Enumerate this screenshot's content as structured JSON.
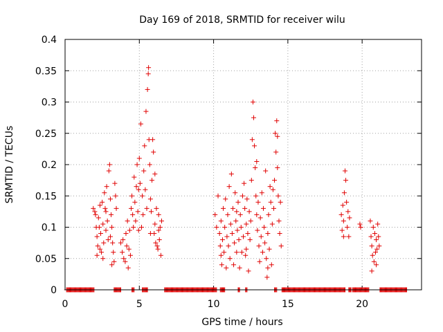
{
  "chart_data": {
    "type": "scatter",
    "title": "Day 169 of 2018, SRMTID for receiver wilu",
    "xlabel": "GPS time / hours",
    "ylabel": "SRMTID / TECUs",
    "xlim": [
      0,
      24
    ],
    "ylim": [
      0,
      0.4
    ],
    "xticks": [
      0,
      5,
      10,
      15,
      20
    ],
    "xtick_labels": [
      "0",
      "5",
      "10",
      "15",
      "20"
    ],
    "yticks": [
      0,
      0.05,
      0.1,
      0.15,
      0.2,
      0.25,
      0.3,
      0.35,
      0.4
    ],
    "ytick_labels": [
      "0",
      "0.05",
      "0.1",
      "0.15",
      "0.2",
      "0.25",
      "0.3",
      "0.35",
      "0.4"
    ],
    "grid": true,
    "marker": "+",
    "color": "#e00000",
    "series": [
      {
        "name": "SRMTID",
        "points": [
          [
            1.9,
            0.13
          ],
          [
            2.0,
            0.125
          ],
          [
            2.05,
            0.12
          ],
          [
            2.1,
            0.1
          ],
          [
            2.15,
            0.085
          ],
          [
            2.2,
            0.07
          ],
          [
            2.25,
            0.115
          ],
          [
            2.3,
            0.1
          ],
          [
            2.35,
            0.135
          ],
          [
            2.4,
            0.09
          ],
          [
            2.45,
            0.06
          ],
          [
            2.5,
            0.14
          ],
          [
            2.55,
            0.105
          ],
          [
            2.6,
            0.075
          ],
          [
            2.65,
            0.155
          ],
          [
            2.7,
            0.13
          ],
          [
            2.75,
            0.095
          ],
          [
            2.8,
            0.165
          ],
          [
            2.85,
            0.11
          ],
          [
            2.9,
            0.08
          ],
          [
            2.95,
            0.19
          ],
          [
            3.0,
            0.2
          ],
          [
            3.05,
            0.145
          ],
          [
            3.1,
            0.12
          ],
          [
            3.15,
            0.1
          ],
          [
            3.2,
            0.075
          ],
          [
            3.25,
            0.06
          ],
          [
            3.3,
            0.045
          ],
          [
            3.35,
            0.17
          ],
          [
            3.4,
            0.15
          ],
          [
            3.45,
            0.13
          ],
          [
            2.15,
            0.055
          ],
          [
            2.35,
            0.065
          ],
          [
            2.55,
            0.05
          ],
          [
            2.75,
            0.125
          ],
          [
            3.05,
            0.085
          ],
          [
            3.15,
            0.04
          ],
          [
            3.75,
            0.075
          ],
          [
            3.85,
            0.06
          ],
          [
            3.9,
            0.08
          ],
          [
            3.95,
            0.05
          ],
          [
            4.05,
            0.045
          ],
          [
            4.1,
            0.09
          ],
          [
            4.15,
            0.07
          ],
          [
            4.2,
            0.11
          ],
          [
            4.25,
            0.035
          ],
          [
            4.3,
            0.065
          ],
          [
            4.35,
            0.095
          ],
          [
            4.45,
            0.13
          ],
          [
            4.5,
            0.15
          ],
          [
            4.55,
            0.12
          ],
          [
            4.6,
            0.1
          ],
          [
            4.65,
            0.18
          ],
          [
            4.7,
            0.14
          ],
          [
            4.75,
            0.11
          ],
          [
            4.8,
            0.165
          ],
          [
            4.85,
            0.2
          ],
          [
            4.9,
            0.125
          ],
          [
            4.95,
            0.095
          ],
          [
            5.0,
            0.21
          ],
          [
            5.05,
            0.17
          ],
          [
            5.1,
            0.265
          ],
          [
            5.15,
            0.1
          ],
          [
            5.2,
            0.15
          ],
          [
            5.25,
            0.12
          ],
          [
            5.3,
            0.19
          ],
          [
            5.35,
            0.23
          ],
          [
            5.4,
            0.16
          ],
          [
            5.45,
            0.285
          ],
          [
            5.5,
            0.13
          ],
          [
            5.55,
            0.32
          ],
          [
            5.6,
            0.345
          ],
          [
            5.62,
            0.355
          ],
          [
            5.65,
            0.24
          ],
          [
            5.7,
            0.2
          ],
          [
            5.75,
            0.145
          ],
          [
            5.8,
            0.125
          ],
          [
            5.85,
            0.175
          ],
          [
            5.9,
            0.24
          ],
          [
            5.95,
            0.22
          ],
          [
            6.0,
            0.09
          ],
          [
            6.05,
            0.105
          ],
          [
            6.1,
            0.075
          ],
          [
            6.15,
            0.13
          ],
          [
            6.2,
            0.07
          ],
          [
            6.25,
            0.065
          ],
          [
            6.3,
            0.12
          ],
          [
            6.35,
            0.08
          ],
          [
            6.4,
            0.1
          ],
          [
            6.45,
            0.055
          ],
          [
            6.5,
            0.11
          ],
          [
            4.4,
            0.055
          ],
          [
            4.95,
            0.16
          ],
          [
            5.75,
            0.09
          ],
          [
            6.05,
            0.185
          ],
          [
            6.3,
            0.095
          ],
          [
            10.1,
            0.12
          ],
          [
            10.2,
            0.1
          ],
          [
            10.3,
            0.15
          ],
          [
            10.4,
            0.09
          ],
          [
            10.45,
            0.07
          ],
          [
            10.5,
            0.11
          ],
          [
            10.55,
            0.04
          ],
          [
            10.6,
            0.08
          ],
          [
            10.65,
            0.13
          ],
          [
            10.7,
            0.06
          ],
          [
            10.75,
            0.1
          ],
          [
            10.8,
            0.145
          ],
          [
            10.85,
            0.035
          ],
          [
            10.9,
            0.085
          ],
          [
            10.95,
            0.12
          ],
          [
            11.0,
            0.07
          ],
          [
            11.05,
            0.165
          ],
          [
            11.1,
            0.05
          ],
          [
            11.15,
            0.105
          ],
          [
            11.2,
            0.185
          ],
          [
            11.25,
            0.09
          ],
          [
            11.3,
            0.13
          ],
          [
            11.35,
            0.04
          ],
          [
            11.4,
            0.075
          ],
          [
            11.45,
            0.155
          ],
          [
            11.5,
            0.11
          ],
          [
            11.55,
            0.06
          ],
          [
            11.6,
            0.095
          ],
          [
            11.65,
            0.14
          ],
          [
            11.7,
            0.08
          ],
          [
            11.75,
            0.035
          ],
          [
            11.8,
            0.12
          ],
          [
            11.85,
            0.1
          ],
          [
            11.9,
            0.06
          ],
          [
            11.95,
            0.15
          ],
          [
            12.0,
            0.085
          ],
          [
            12.05,
            0.17
          ],
          [
            12.1,
            0.13
          ],
          [
            12.15,
            0.055
          ],
          [
            12.2,
            0.105
          ],
          [
            12.25,
            0.145
          ],
          [
            12.3,
            0.09
          ],
          [
            12.35,
            0.03
          ],
          [
            12.4,
            0.125
          ],
          [
            12.45,
            0.08
          ],
          [
            12.5,
            0.11
          ],
          [
            12.55,
            0.175
          ],
          [
            12.6,
            0.24
          ],
          [
            12.65,
            0.3
          ],
          [
            12.7,
            0.275
          ],
          [
            12.75,
            0.23
          ],
          [
            12.8,
            0.195
          ],
          [
            12.85,
            0.15
          ],
          [
            12.9,
            0.12
          ],
          [
            12.95,
            0.095
          ],
          [
            13.0,
            0.14
          ],
          [
            13.05,
            0.07
          ],
          [
            13.1,
            0.045
          ],
          [
            13.15,
            0.115
          ],
          [
            13.2,
            0.085
          ],
          [
            13.25,
            0.155
          ],
          [
            13.3,
            0.06
          ],
          [
            13.35,
            0.13
          ],
          [
            13.4,
            0.1
          ],
          [
            13.45,
            0.075
          ],
          [
            13.5,
            0.19
          ],
          [
            13.55,
            0.05
          ],
          [
            13.6,
            0.02
          ],
          [
            13.65,
            0.09
          ],
          [
            13.7,
            0.12
          ],
          [
            13.75,
            0.065
          ],
          [
            13.8,
            0.165
          ],
          [
            13.85,
            0.14
          ],
          [
            13.9,
            0.04
          ],
          [
            13.95,
            0.105
          ],
          [
            14.0,
            0.16
          ],
          [
            14.05,
            0.13
          ],
          [
            14.1,
            0.175
          ],
          [
            14.15,
            0.25
          ],
          [
            14.2,
            0.22
          ],
          [
            14.25,
            0.27
          ],
          [
            14.3,
            0.195
          ],
          [
            14.35,
            0.15
          ],
          [
            14.4,
            0.11
          ],
          [
            14.45,
            0.09
          ],
          [
            14.5,
            0.14
          ],
          [
            14.55,
            0.07
          ],
          [
            10.5,
            0.055
          ],
          [
            11.55,
            0.125
          ],
          [
            12.2,
            0.065
          ],
          [
            12.9,
            0.205
          ],
          [
            13.65,
            0.035
          ],
          [
            14.3,
            0.245
          ],
          [
            18.6,
            0.12
          ],
          [
            18.65,
            0.095
          ],
          [
            18.7,
            0.135
          ],
          [
            18.75,
            0.11
          ],
          [
            18.8,
            0.155
          ],
          [
            18.85,
            0.19
          ],
          [
            18.9,
            0.175
          ],
          [
            18.95,
            0.14
          ],
          [
            19.0,
            0.1
          ],
          [
            19.05,
            0.125
          ],
          [
            19.1,
            0.085
          ],
          [
            19.15,
            0.115
          ],
          [
            19.85,
            0.105
          ],
          [
            19.9,
            0.1
          ],
          [
            18.75,
            0.085
          ],
          [
            20.55,
            0.11
          ],
          [
            20.6,
            0.085
          ],
          [
            20.65,
            0.07
          ],
          [
            20.7,
            0.055
          ],
          [
            20.75,
            0.1
          ],
          [
            20.8,
            0.045
          ],
          [
            20.85,
            0.09
          ],
          [
            20.9,
            0.06
          ],
          [
            20.95,
            0.08
          ],
          [
            21.0,
            0.065
          ],
          [
            21.05,
            0.105
          ],
          [
            21.1,
            0.085
          ],
          [
            21.15,
            0.07
          ],
          [
            20.65,
            0.03
          ],
          [
            20.95,
            0.04
          ]
        ]
      }
    ],
    "zero_segments": [
      [
        0.1,
        1.95
      ],
      [
        3.3,
        3.75
      ],
      [
        4.5,
        4.65
      ],
      [
        5.2,
        5.55
      ],
      [
        6.7,
        10.2
      ],
      [
        10.45,
        10.75
      ],
      [
        11.65,
        11.75
      ],
      [
        12.15,
        12.25
      ],
      [
        14.1,
        14.25
      ],
      [
        14.6,
        18.85
      ],
      [
        19.1,
        19.25
      ],
      [
        19.35,
        20.45
      ],
      [
        21.2,
        23.0
      ]
    ]
  }
}
